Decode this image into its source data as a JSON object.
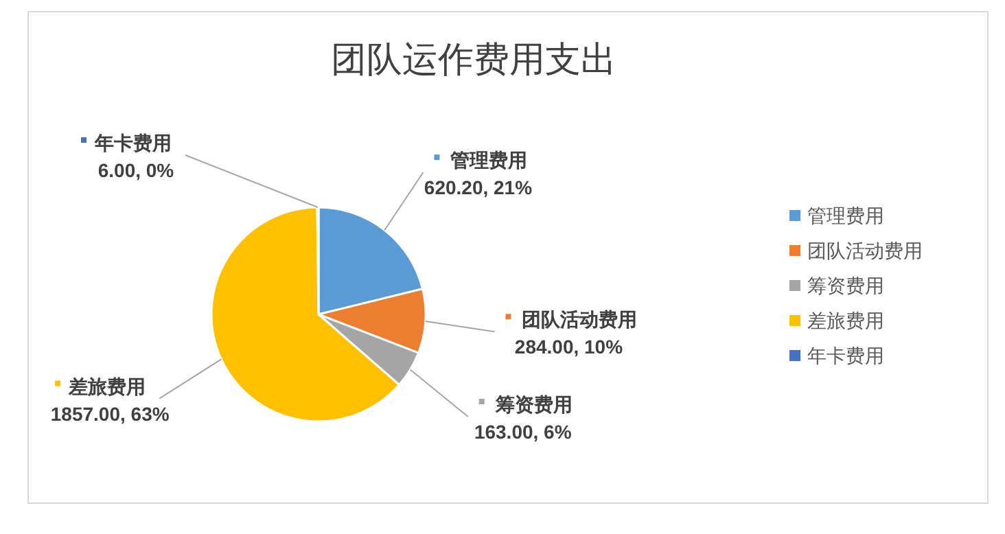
{
  "chart_data": {
    "type": "pie",
    "title": "团队运作费用支出",
    "categories": [
      "管理费用",
      "团队活动费用",
      "筹资费用",
      "差旅费用",
      "年卡费用"
    ],
    "values": [
      620.2,
      284,
      163,
      1857,
      6
    ],
    "colors": [
      "#5b9bd5",
      "#ed7d31",
      "#a5a5a5",
      "#ffc000",
      "#4472c4"
    ],
    "value_labels": [
      "620.20, 21%",
      "284.00, 10%",
      "163.00, 6%",
      "1857.00, 63%",
      "6.00, 0%"
    ],
    "legend": "right"
  }
}
